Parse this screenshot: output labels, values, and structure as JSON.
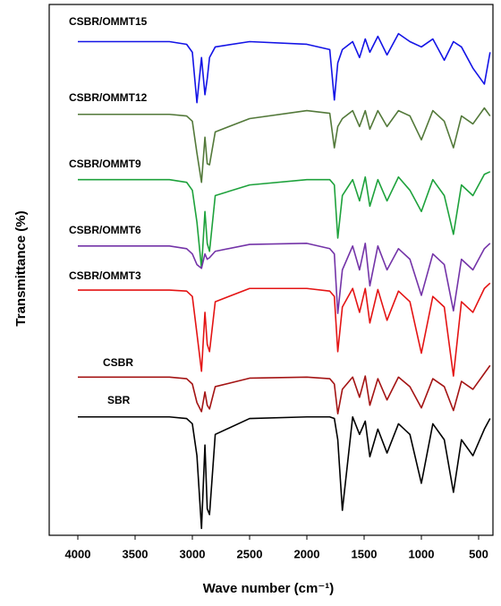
{
  "chart_data": {
    "type": "line",
    "xlabel": "Wave number (cm⁻¹)",
    "ylabel": "Transmittance (%)",
    "x": [
      4000,
      3200,
      3050,
      3000,
      2960,
      2920,
      2890,
      2870,
      2850,
      2800,
      2500,
      2000,
      1800,
      1760,
      1730,
      1690,
      1600,
      1540,
      1490,
      1450,
      1380,
      1300,
      1200,
      1100,
      1000,
      900,
      800,
      720,
      650,
      550,
      450,
      400
    ],
    "xlim": [
      4250,
      375
    ],
    "xticks": [
      4000,
      3500,
      3000,
      2500,
      2000,
      1500,
      1000,
      500
    ],
    "ylim": [
      0,
      100
    ],
    "series": [
      {
        "name": "CSBR/OMMT15",
        "color": "#1414e6",
        "values": [
          93,
          93,
          92.5,
          91,
          81.5,
          90,
          83,
          86,
          90,
          92,
          93,
          92.5,
          91.5,
          82,
          89,
          91.5,
          93,
          90,
          93.5,
          91,
          94,
          90.5,
          94.5,
          93,
          92,
          93.5,
          89.5,
          93,
          92,
          88,
          85,
          91
        ]
      },
      {
        "name": "CSBR/OMMT12",
        "color": "#53793a",
        "values": [
          79.3,
          79.3,
          79,
          78,
          72,
          66.5,
          75,
          70,
          69.8,
          76,
          78.5,
          80,
          79.5,
          73,
          77,
          78.5,
          80,
          77,
          80,
          76.5,
          80,
          77,
          80,
          79,
          74.5,
          80,
          78,
          73,
          79,
          77.5,
          80.5,
          79
        ]
      },
      {
        "name": "CSBR/OMMT9",
        "color": "#1ea23c",
        "values": [
          67,
          67,
          66.5,
          65,
          59,
          50.3,
          61,
          55,
          53.5,
          64,
          66,
          67,
          67,
          66,
          56,
          64,
          67,
          63,
          67.5,
          62,
          67,
          63,
          67.5,
          65,
          61,
          67,
          64,
          56.7,
          66,
          64,
          68,
          68.5
        ]
      },
      {
        "name": "CSBR/OMMT6",
        "color": "#7434a8",
        "values": [
          54.5,
          54.5,
          54,
          53,
          51,
          50.3,
          53,
          52,
          52.3,
          53.5,
          54.8,
          55,
          54,
          53,
          41.8,
          50,
          54.5,
          50,
          55,
          47,
          54.5,
          50,
          54,
          52,
          45.2,
          53,
          51,
          42.3,
          52,
          50,
          54,
          55
        ]
      },
      {
        "name": "CSBR/OMMT3",
        "color": "#e41414",
        "values": [
          46.2,
          46.2,
          46,
          45,
          38,
          30.9,
          42,
          36,
          34.6,
          44,
          46.5,
          46.5,
          46,
          45,
          34.6,
          43,
          46.5,
          42,
          46.5,
          40,
          46.3,
          40.5,
          46,
          44,
          34.3,
          45,
          43,
          30,
          44,
          42,
          46.5,
          47.5
        ]
      },
      {
        "name": "CSBR",
        "color": "#a41414",
        "values": [
          29.8,
          29.8,
          29.5,
          28.5,
          25,
          23.3,
          27,
          24.5,
          23.8,
          28,
          29.6,
          29.8,
          29.5,
          28.5,
          22.9,
          27.5,
          29.8,
          26,
          30,
          24.5,
          29.5,
          25.5,
          29.8,
          28,
          24,
          29.5,
          28,
          23.5,
          29,
          27.5,
          30.5,
          32
        ]
      },
      {
        "name": "SBR",
        "color": "#000000",
        "values": [
          22.3,
          22.3,
          22,
          21,
          15,
          1.3,
          17,
          5,
          3.9,
          19,
          22,
          22.3,
          22.3,
          22,
          18,
          4.7,
          22.3,
          19,
          21.5,
          14.8,
          20,
          15.5,
          21,
          19,
          9.8,
          21,
          18,
          8.1,
          18,
          15,
          20,
          22
        ]
      }
    ]
  }
}
